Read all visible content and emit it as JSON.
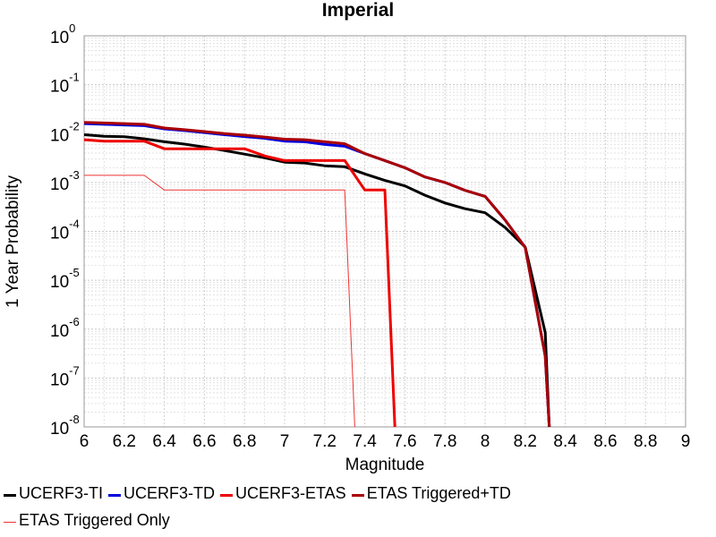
{
  "chart_data": {
    "type": "line",
    "title": "Imperial",
    "xlabel": "Magnitude",
    "ylabel": "1 Year Probability",
    "xlim": [
      6,
      9
    ],
    "ylim": [
      1e-08,
      1
    ],
    "yscale": "log",
    "grid": true,
    "legend_position": "bottom",
    "x_ticks": [
      "6",
      "6.2",
      "6.4",
      "6.6",
      "6.8",
      "7",
      "7.2",
      "7.4",
      "7.6",
      "7.8",
      "8",
      "8.2",
      "8.4",
      "8.6",
      "8.8",
      "9"
    ],
    "y_tick_exponents": [
      "0",
      "-1",
      "-2",
      "-3",
      "-4",
      "-5",
      "-6",
      "-7",
      "-8"
    ],
    "series": [
      {
        "name": "UCERF3-TI",
        "color": "#000000",
        "width": 3,
        "x": [
          6.0,
          6.1,
          6.2,
          6.3,
          6.4,
          6.5,
          6.6,
          6.7,
          6.8,
          6.9,
          7.0,
          7.1,
          7.2,
          7.3,
          7.4,
          7.5,
          7.6,
          7.7,
          7.8,
          7.9,
          8.0,
          8.1,
          8.2,
          8.3,
          8.32
        ],
        "y": [
          0.0095,
          0.0088,
          0.0086,
          0.0078,
          0.0068,
          0.0061,
          0.0053,
          0.0045,
          0.0038,
          0.0032,
          0.0026,
          0.0025,
          0.0022,
          0.0021,
          0.0015,
          0.0011,
          0.00085,
          0.00055,
          0.00038,
          0.00029,
          0.00024,
          0.00012,
          4.8e-05,
          8.5e-07,
          1e-08
        ]
      },
      {
        "name": "UCERF3-TD",
        "color": "#0000dd",
        "width": 3,
        "x": [
          6.0,
          6.1,
          6.2,
          6.3,
          6.4,
          6.5,
          6.6,
          6.7,
          6.8,
          6.9,
          7.0,
          7.1,
          7.2,
          7.3,
          7.4,
          7.5,
          7.6,
          7.7,
          7.8,
          7.9,
          8.0,
          8.1,
          8.2,
          8.3,
          8.32
        ],
        "y": [
          0.016,
          0.0155,
          0.015,
          0.0145,
          0.0125,
          0.0115,
          0.0105,
          0.0095,
          0.0087,
          0.008,
          0.007,
          0.0068,
          0.006,
          0.0055,
          0.0039,
          0.0028,
          0.002,
          0.0013,
          0.001,
          0.00069,
          0.00052,
          0.00017,
          4.7e-05,
          2.8e-07,
          1e-08
        ]
      },
      {
        "name": "UCERF3-ETAS",
        "color": "#ee0000",
        "width": 3,
        "x": [
          6.0,
          6.1,
          6.2,
          6.3,
          6.4,
          6.5,
          6.6,
          6.7,
          6.8,
          6.9,
          7.0,
          7.1,
          7.2,
          7.3,
          7.4,
          7.45,
          7.5,
          7.55
        ],
        "y": [
          0.0075,
          0.007,
          0.007,
          0.007,
          0.0049,
          0.0049,
          0.0049,
          0.0049,
          0.0049,
          0.0035,
          0.0028,
          0.0028,
          0.0028,
          0.0028,
          0.0007,
          0.0007,
          0.0007,
          1e-08
        ]
      },
      {
        "name": "ETAS Triggered+TD",
        "color": "#aa0000",
        "width": 3,
        "x": [
          6.0,
          6.1,
          6.2,
          6.3,
          6.4,
          6.5,
          6.6,
          6.7,
          6.8,
          6.9,
          7.0,
          7.1,
          7.2,
          7.3,
          7.4,
          7.5,
          7.6,
          7.7,
          7.8,
          7.9,
          8.0,
          8.1,
          8.2,
          8.3,
          8.32
        ],
        "y": [
          0.017,
          0.0165,
          0.016,
          0.0155,
          0.013,
          0.012,
          0.011,
          0.01,
          0.0093,
          0.0085,
          0.0077,
          0.0075,
          0.0068,
          0.0062,
          0.0039,
          0.0028,
          0.002,
          0.0013,
          0.001,
          0.00069,
          0.00052,
          0.00017,
          4.7e-05,
          2.8e-07,
          1e-08
        ]
      },
      {
        "name": "ETAS Triggered Only",
        "color": "#ee3333",
        "width": 1,
        "x": [
          6.0,
          6.1,
          6.2,
          6.3,
          6.4,
          6.5,
          6.6,
          6.7,
          6.8,
          6.9,
          7.0,
          7.1,
          7.2,
          7.3,
          7.35
        ],
        "y": [
          0.0014,
          0.0014,
          0.0014,
          0.0014,
          0.0007,
          0.0007,
          0.0007,
          0.0007,
          0.0007,
          0.0007,
          0.0007,
          0.0007,
          0.0007,
          0.0007,
          1e-08
        ]
      }
    ]
  }
}
